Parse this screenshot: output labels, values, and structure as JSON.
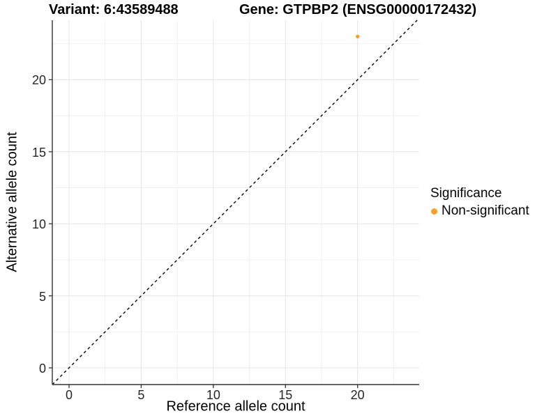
{
  "titles": {
    "variant": "Variant: 6:43589488",
    "gene": "Gene: GTPBP2 (ENSG00000172432)"
  },
  "chart_data": {
    "type": "scatter",
    "title": "Variant: 6:43589488   Gene: GTPBP2 (ENSG00000172432)",
    "xlabel": "Reference allele count",
    "ylabel": "Alternative allele count",
    "xlim": [
      -1.16,
      24.27
    ],
    "ylim": [
      -1.16,
      24.13
    ],
    "x_ticks": [
      0,
      5,
      10,
      15,
      20
    ],
    "y_ticks": [
      0,
      5,
      10,
      15,
      20
    ],
    "x_minor_ticks": [
      2.5,
      7.5,
      12.5,
      17.5,
      22.5
    ],
    "y_minor_ticks": [
      2.5,
      7.5,
      12.5,
      17.5,
      22.5
    ],
    "grid": true,
    "points": [
      {
        "x": 20,
        "y": 23,
        "series": "Non-significant"
      }
    ],
    "identity_line": {
      "equation": "y = x",
      "style": "dashed",
      "color": "#000000"
    },
    "legend": {
      "title": "Significance",
      "position": "right",
      "entries": [
        {
          "label": "Non-significant",
          "color": "#F9A02B"
        }
      ]
    },
    "style": {
      "axis_color": "#333333",
      "major_grid": "#E4E4E4",
      "minor_grid": "#F1F1F1",
      "point_radius": 2.6
    }
  }
}
